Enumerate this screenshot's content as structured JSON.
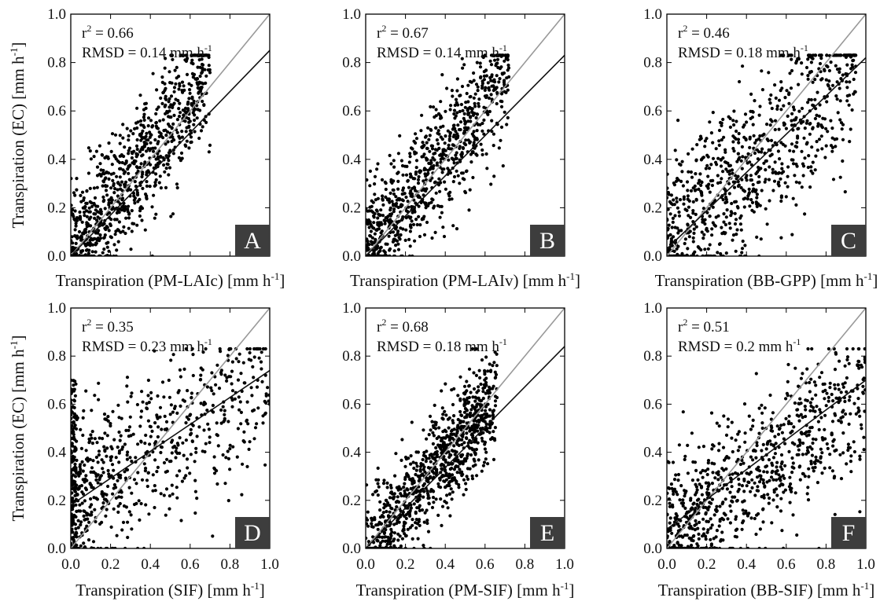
{
  "chart_data": [
    {
      "type": "scatter",
      "panel_label": "A",
      "stats": {
        "r2": "0.66",
        "rmsd": "0.14"
      },
      "xlabel": "Transpiration (PM-LAIc) [mm h",
      "ylabel": "Transpiration (EC) [mm h",
      "xlim": [
        0,
        1.0
      ],
      "ylim": [
        0,
        1.0
      ],
      "x_ticks": [],
      "y_ticks": [
        "0.0",
        "0.2",
        "0.4",
        "0.6",
        "0.8",
        "1.0"
      ],
      "fit_line": [
        [
          0,
          0
        ],
        [
          1.0,
          0.85
        ]
      ],
      "one_to_one": [
        [
          0,
          0
        ],
        [
          1.0,
          1.0
        ]
      ],
      "cloud": {
        "n": 900,
        "shape": "triangle",
        "xmax": 0.7,
        "slope": 1.15,
        "spread": 0.13,
        "seed": 11
      }
    },
    {
      "type": "scatter",
      "panel_label": "B",
      "stats": {
        "r2": "0.67",
        "rmsd": "0.14"
      },
      "xlabel": "Transpiration (PM-LAIv) [mm h",
      "ylabel": "",
      "xlim": [
        0,
        1.0
      ],
      "ylim": [
        0,
        1.0
      ],
      "x_ticks": [],
      "y_ticks": [
        "0.0",
        "0.2",
        "0.4",
        "0.6",
        "0.8",
        "1.0"
      ],
      "fit_line": [
        [
          0,
          0
        ],
        [
          1.0,
          0.83
        ]
      ],
      "one_to_one": [
        [
          0,
          0
        ],
        [
          1.0,
          1.0
        ]
      ],
      "cloud": {
        "n": 900,
        "shape": "triangle",
        "xmax": 0.72,
        "slope": 1.1,
        "spread": 0.12,
        "seed": 23
      }
    },
    {
      "type": "scatter",
      "panel_label": "C",
      "stats": {
        "r2": "0.46",
        "rmsd": "0.18"
      },
      "xlabel": "Transpiration (BB-GPP) [mm h",
      "ylabel": "",
      "xlim": [
        0,
        1.0
      ],
      "ylim": [
        0,
        1.0
      ],
      "x_ticks": [],
      "y_ticks": [
        "0.0",
        "0.2",
        "0.4",
        "0.6",
        "0.8",
        "1.0"
      ],
      "fit_line": [
        [
          0,
          0.03
        ],
        [
          1.0,
          0.82
        ]
      ],
      "one_to_one": [
        [
          0,
          0
        ],
        [
          1.0,
          1.0
        ]
      ],
      "cloud": {
        "n": 850,
        "shape": "wide",
        "xmax": 0.95,
        "slope": 0.85,
        "spread": 0.17,
        "seed": 37
      }
    },
    {
      "type": "scatter",
      "panel_label": "D",
      "stats": {
        "r2": "0.35",
        "rmsd": "0.23"
      },
      "xlabel": "Transpiration (SIF) [mm h",
      "ylabel": "Transpiration (EC) [mm h",
      "xlim": [
        0,
        1.0
      ],
      "ylim": [
        0,
        1.0
      ],
      "x_ticks": [
        "0.0",
        "0.2",
        "0.4",
        "0.6",
        "0.8",
        "1.0"
      ],
      "y_ticks": [
        "0.0",
        "0.2",
        "0.4",
        "0.6",
        "0.8",
        "1.0"
      ],
      "fit_line": [
        [
          0,
          0.18
        ],
        [
          1.0,
          0.74
        ]
      ],
      "one_to_one": [
        [
          0,
          0
        ],
        [
          1.0,
          1.0
        ]
      ],
      "cloud": {
        "n": 800,
        "shape": "flat",
        "xmax": 1.0,
        "slope": 0.55,
        "spread": 0.17,
        "seed": 53
      }
    },
    {
      "type": "scatter",
      "panel_label": "E",
      "stats": {
        "r2": "0.68",
        "rmsd": "0.18"
      },
      "xlabel": "Transpiration (PM-SIF) [mm h",
      "ylabel": "",
      "xlim": [
        0,
        1.0
      ],
      "ylim": [
        0,
        1.0
      ],
      "x_ticks": [
        "0.0",
        "0.2",
        "0.4",
        "0.6",
        "0.8",
        "1.0"
      ],
      "y_ticks": [
        "0.0",
        "0.2",
        "0.4",
        "0.6",
        "0.8",
        "1.0"
      ],
      "fit_line": [
        [
          0,
          0
        ],
        [
          1.0,
          0.84
        ]
      ],
      "one_to_one": [
        [
          0,
          0
        ],
        [
          1.0,
          1.0
        ]
      ],
      "cloud": {
        "n": 950,
        "shape": "steep",
        "xmax": 0.66,
        "slope": 0.95,
        "spread": 0.11,
        "seed": 71
      }
    },
    {
      "type": "scatter",
      "panel_label": "F",
      "stats": {
        "r2": "0.51",
        "rmsd": "0.2"
      },
      "xlabel": "Transpiration (BB-SIF) [mm h",
      "ylabel": "",
      "xlim": [
        0,
        1.0
      ],
      "ylim": [
        0,
        1.0
      ],
      "x_ticks": [
        "0.0",
        "0.2",
        "0.4",
        "0.6",
        "0.8",
        "1.0"
      ],
      "y_ticks": [
        "0.0",
        "0.2",
        "0.4",
        "0.6",
        "0.8",
        "1.0"
      ],
      "fit_line": [
        [
          0,
          0.08
        ],
        [
          1.0,
          0.7
        ]
      ],
      "one_to_one": [
        [
          0,
          0
        ],
        [
          1.0,
          1.0
        ]
      ],
      "cloud": {
        "n": 850,
        "shape": "wide",
        "xmax": 1.0,
        "slope": 0.65,
        "spread": 0.15,
        "seed": 89
      }
    }
  ],
  "unit_suffix": "-1]",
  "rmsd_prefix": "RMSD = ",
  "rmsd_unit": " mm h",
  "r2_prefix": "r",
  "r2_eq": " = ",
  "colors": {
    "points": "#000000",
    "fit_line": "#111111",
    "one_to_one": "#999999",
    "label_box": "#3d3d3d",
    "label_text": "#ffffff"
  }
}
